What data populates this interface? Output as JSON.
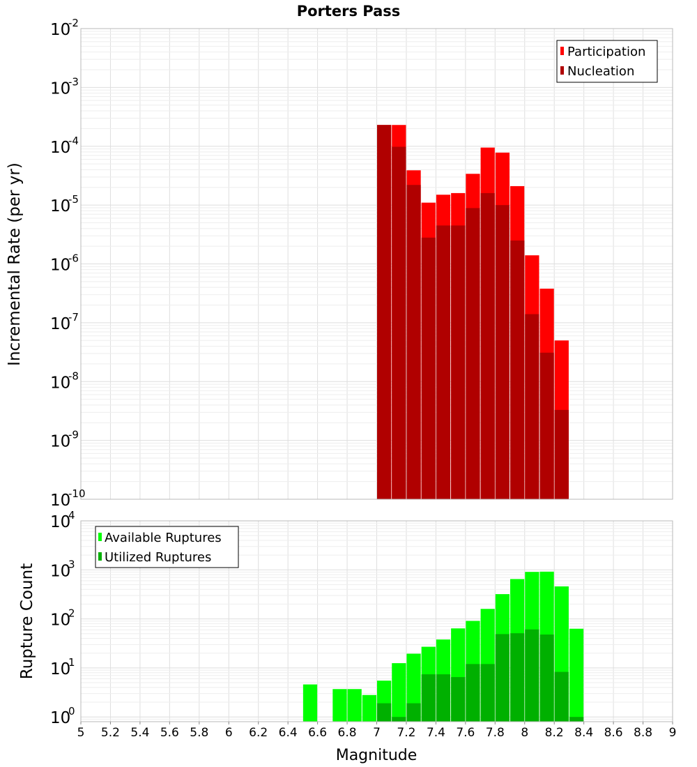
{
  "chart_data": [
    {
      "type": "bar",
      "panel": "top",
      "title": "Porters Pass",
      "xlabel": "",
      "ylabel": "Incremental Rate (per yr)",
      "y_scale": "log",
      "ylim": [
        1e-10,
        0.01
      ],
      "xlim": [
        5,
        9
      ],
      "bin_width": 0.1,
      "grid": true,
      "legend_position": "top-right",
      "x": [
        7.05,
        7.15,
        7.25,
        7.35,
        7.45,
        7.55,
        7.65,
        7.75,
        7.85,
        7.95,
        8.05,
        8.15,
        8.25
      ],
      "series": [
        {
          "name": "Participation",
          "color": "#ff0000",
          "values": [
            0.00023,
            0.00023,
            3.9e-05,
            1.1e-05,
            1.5e-05,
            1.6e-05,
            3.4e-05,
            9.5e-05,
            7.8e-05,
            2.1e-05,
            1.4e-06,
            3.8e-07,
            5e-08
          ]
        },
        {
          "name": "Nucleation",
          "color": "#b00000",
          "values": [
            0.00023,
            9.8e-05,
            2.2e-05,
            2.8e-06,
            4.5e-06,
            4.5e-06,
            8.9e-06,
            1.6e-05,
            1e-05,
            2.5e-06,
            1.4e-07,
            3.1e-08,
            3.3e-09
          ]
        }
      ],
      "y_ticks": [
        {
          "base": "10",
          "exp": "-10"
        },
        {
          "base": "10",
          "exp": "-9"
        },
        {
          "base": "10",
          "exp": "-8"
        },
        {
          "base": "10",
          "exp": "-7"
        },
        {
          "base": "10",
          "exp": "-6"
        },
        {
          "base": "10",
          "exp": "-5"
        },
        {
          "base": "10",
          "exp": "-4"
        },
        {
          "base": "10",
          "exp": "-3"
        },
        {
          "base": "10",
          "exp": "-2"
        }
      ]
    },
    {
      "type": "bar",
      "panel": "bottom",
      "title": "",
      "xlabel": "Magnitude",
      "ylabel": "Rupture Count",
      "y_scale": "log",
      "ylim": [
        0.8,
        10000
      ],
      "xlim": [
        5,
        9
      ],
      "bin_width": 0.1,
      "grid": true,
      "legend_position": "top-left",
      "x": [
        6.55,
        6.75,
        6.85,
        6.95,
        7.05,
        7.15,
        7.25,
        7.35,
        7.45,
        7.55,
        7.65,
        7.75,
        7.85,
        7.95,
        8.05,
        8.15,
        8.25,
        8.35
      ],
      "series": [
        {
          "name": "Available Ruptures",
          "color": "#00ff00",
          "values": [
            4.6,
            3.7,
            3.7,
            2.8,
            5.5,
            12.5,
            19.5,
            27,
            38,
            64,
            91,
            160,
            320,
            650,
            910,
            920,
            460,
            63
          ]
        },
        {
          "name": "Utilized Ruptures",
          "color": "#00b000",
          "values": [
            0,
            0,
            0,
            0,
            1.9,
            1.0,
            1.9,
            7.4,
            7.4,
            6.5,
            12,
            12,
            49,
            51,
            61,
            48,
            8.3,
            1.0
          ]
        }
      ],
      "y_ticks": [
        {
          "base": "10",
          "exp": "0"
        },
        {
          "base": "10",
          "exp": "1"
        },
        {
          "base": "10",
          "exp": "2"
        },
        {
          "base": "10",
          "exp": "3"
        },
        {
          "base": "10",
          "exp": "4"
        }
      ],
      "x_ticks": [
        "5",
        "5.2",
        "5.4",
        "5.6",
        "5.8",
        "6",
        "6.2",
        "6.4",
        "6.6",
        "6.8",
        "7",
        "7.2",
        "7.4",
        "7.6",
        "7.8",
        "8",
        "8.2",
        "8.4",
        "8.6",
        "8.8",
        "9"
      ]
    }
  ]
}
